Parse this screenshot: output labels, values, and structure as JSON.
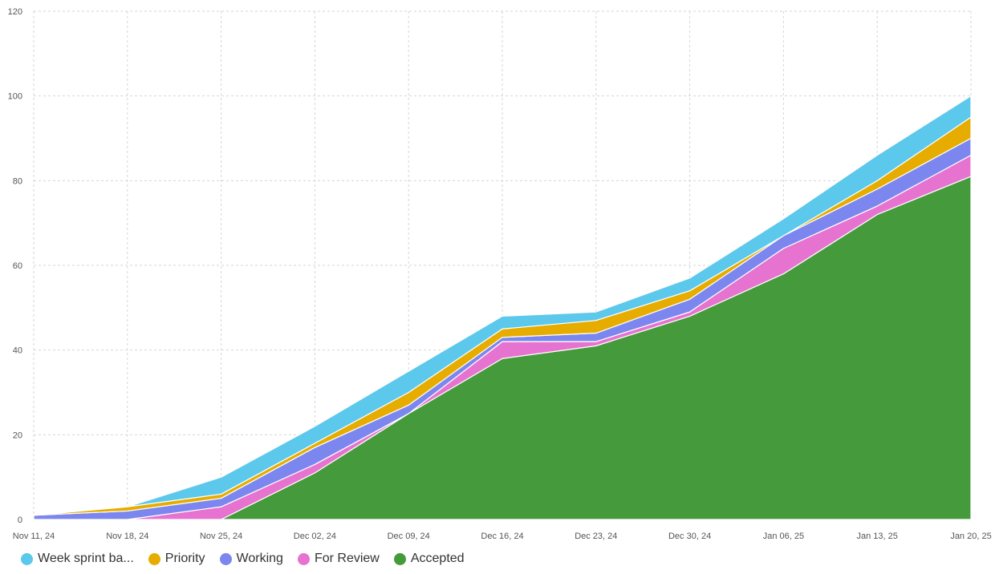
{
  "chart_data": {
    "type": "area",
    "stacked": true,
    "categories": [
      "Nov 11, 24",
      "Nov 18, 24",
      "Nov 25, 24",
      "Dec 02, 24",
      "Dec 09, 24",
      "Dec 16, 24",
      "Dec 23, 24",
      "Dec 30, 24",
      "Jan 06, 25",
      "Jan 13, 25",
      "Jan 20, 25"
    ],
    "ylim": [
      0,
      120
    ],
    "yticks": [
      0,
      20,
      40,
      60,
      80,
      100,
      120
    ],
    "grid": true,
    "legend_position": "bottom-left",
    "series": [
      {
        "name": "Accepted",
        "color": "#459a3c",
        "values": [
          0,
          0,
          0,
          11,
          25,
          38,
          41,
          48,
          58,
          72,
          81
        ]
      },
      {
        "name": "For Review",
        "color": "#e673cf",
        "values": [
          0,
          0,
          3,
          2,
          0,
          4,
          1,
          1,
          6,
          2,
          5
        ]
      },
      {
        "name": "Working",
        "color": "#7b87ee",
        "values": [
          1,
          2,
          2,
          4,
          2,
          1,
          2,
          3,
          3,
          4,
          4
        ]
      },
      {
        "name": "Priority",
        "color": "#e6ad00",
        "values": [
          0,
          1,
          1,
          1,
          3,
          2,
          3,
          2,
          0,
          2,
          5
        ]
      },
      {
        "name": "Week sprint ba...",
        "color": "#5bc8ec",
        "values": [
          0,
          0,
          4,
          4,
          5,
          3,
          2,
          3,
          4,
          6,
          5
        ]
      }
    ]
  },
  "legend": [
    {
      "label": "Week sprint ba...",
      "color": "#5bc8ec"
    },
    {
      "label": "Priority",
      "color": "#e6ad00"
    },
    {
      "label": "Working",
      "color": "#7b87ee"
    },
    {
      "label": "For Review",
      "color": "#e673cf"
    },
    {
      "label": "Accepted",
      "color": "#459a3c"
    }
  ]
}
